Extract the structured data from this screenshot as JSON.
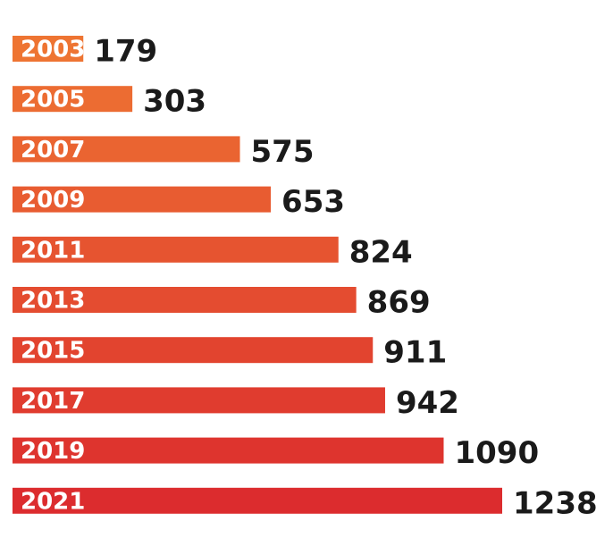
{
  "chart_data": {
    "type": "bar",
    "orientation": "horizontal",
    "categories": [
      "2003",
      "2005",
      "2007",
      "2009",
      "2011",
      "2013",
      "2015",
      "2017",
      "2019",
      "2021"
    ],
    "values": [
      179,
      303,
      575,
      653,
      824,
      869,
      911,
      942,
      1090,
      1238
    ],
    "value_labels": [
      "179",
      "303",
      "575",
      "653",
      "824",
      "869",
      "911",
      "942",
      "1090",
      "1238"
    ],
    "xlim": [
      0,
      1238
    ],
    "grid": false,
    "legend": "none",
    "colors": {
      "start": "#ee7432",
      "end": "#dc2c2e",
      "category_text": "#ffffff",
      "value_text": "#1a1a1a"
    }
  }
}
